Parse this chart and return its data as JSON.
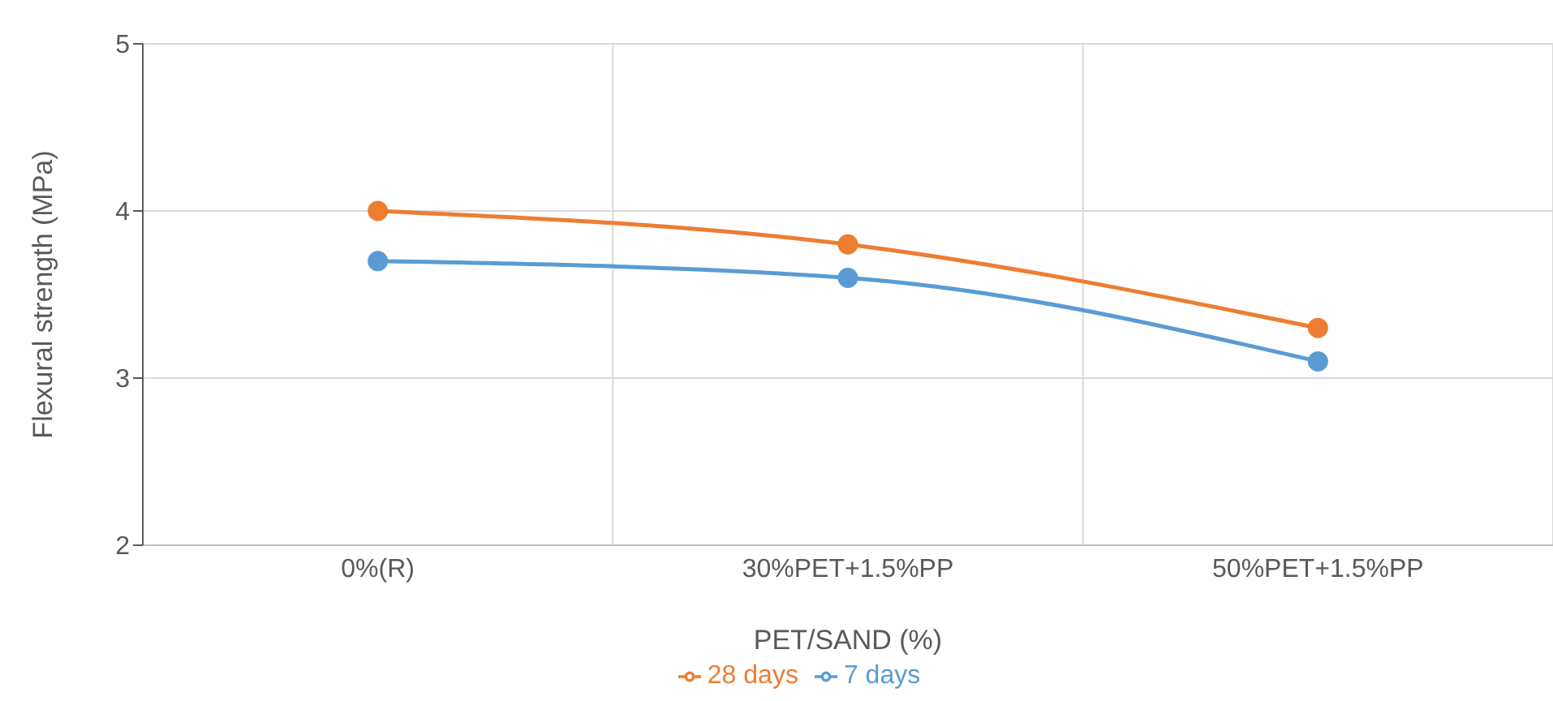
{
  "chart_data": {
    "type": "line",
    "xlabel": "PET/SAND (%)",
    "ylabel": "Flexural strength (MPa)",
    "categories": [
      "0%(R)",
      "30%PET+1.5%PP",
      "50%PET+1.5%PP"
    ],
    "series": [
      {
        "name": "7 days",
        "color": "#5b9bd5",
        "values": [
          3.7,
          3.6,
          3.1
        ]
      },
      {
        "name": "28 days",
        "color": "#ed7d31",
        "values": [
          4.0,
          3.8,
          3.3
        ]
      }
    ],
    "ylim": [
      2,
      5
    ],
    "yticks": [
      2,
      3,
      4,
      5
    ],
    "grid": true,
    "legend": "bottom",
    "marker": "circle",
    "line_style": "solid"
  }
}
